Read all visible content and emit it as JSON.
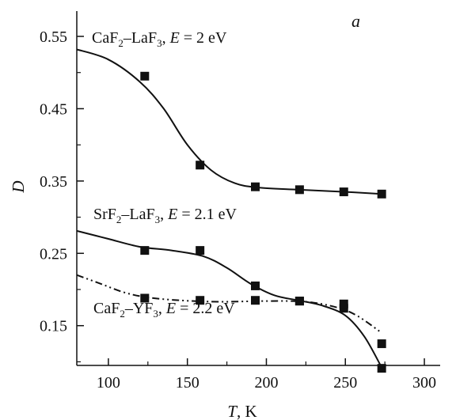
{
  "chart_data": {
    "type": "scatter",
    "panel_label": "a",
    "xlabel_var": "T",
    "xlabel_unit": ", K",
    "ylabel": "D",
    "xlim": [
      80,
      310
    ],
    "ylim": [
      0.095,
      0.585
    ],
    "x_ticks": [
      100,
      150,
      200,
      250,
      300
    ],
    "y_ticks": [
      0.15,
      0.25,
      0.35,
      0.45,
      0.55
    ],
    "x_tick_labels": [
      "100",
      "150",
      "200",
      "250",
      "300"
    ],
    "y_tick_labels": [
      "0.15",
      "0.25",
      "0.35",
      "0.45",
      "0.55"
    ],
    "grid": false,
    "series": [
      {
        "id": "caf2-laf3",
        "label": {
          "a": "CaF",
          "a_sub": "2",
          "b": "–LaF",
          "b_sub": "3",
          "sep": ", ",
          "e": "E",
          "rest": " = 2 eV"
        },
        "line_style": "solid",
        "points": [
          [
            123,
            0.495
          ],
          [
            158,
            0.372
          ],
          [
            193,
            0.342
          ],
          [
            221,
            0.338
          ],
          [
            249,
            0.335
          ],
          [
            273,
            0.332
          ]
        ],
        "curve": [
          [
            80,
            0.532
          ],
          [
            100,
            0.518
          ],
          [
            120,
            0.487
          ],
          [
            135,
            0.45
          ],
          [
            150,
            0.4
          ],
          [
            165,
            0.365
          ],
          [
            180,
            0.347
          ],
          [
            195,
            0.341
          ],
          [
            220,
            0.338
          ],
          [
            250,
            0.335
          ],
          [
            273,
            0.332
          ]
        ]
      },
      {
        "id": "srf2-laf3",
        "label": {
          "a": "SrF",
          "a_sub": "2",
          "b": "–LaF",
          "b_sub": "3",
          "sep": ", ",
          "e": "E",
          "rest": " = 2.1 eV"
        },
        "line_style": "solid",
        "points": [
          [
            123,
            0.254
          ],
          [
            158,
            0.254
          ],
          [
            193,
            0.205
          ],
          [
            221,
            0.184
          ],
          [
            249,
            0.174
          ],
          [
            273,
            0.091
          ]
        ],
        "curve": [
          [
            80,
            0.281
          ],
          [
            100,
            0.27
          ],
          [
            120,
            0.259
          ],
          [
            140,
            0.254
          ],
          [
            160,
            0.246
          ],
          [
            175,
            0.23
          ],
          [
            190,
            0.208
          ],
          [
            205,
            0.192
          ],
          [
            220,
            0.185
          ],
          [
            235,
            0.178
          ],
          [
            250,
            0.164
          ],
          [
            262,
            0.135
          ],
          [
            273,
            0.092
          ]
        ]
      },
      {
        "id": "caf2-yf3",
        "label": {
          "a": "CaF",
          "a_sub": "2",
          "b": "–YF",
          "b_sub": "3",
          "sep": ", ",
          "e": "E",
          "rest": " = 2.2 eV"
        },
        "line_style": "dash-dot",
        "points": [
          [
            123,
            0.188
          ],
          [
            158,
            0.185
          ],
          [
            193,
            0.185
          ],
          [
            221,
            0.184
          ],
          [
            249,
            0.18
          ],
          [
            273,
            0.125
          ]
        ],
        "curve": [
          [
            80,
            0.22
          ],
          [
            95,
            0.208
          ],
          [
            110,
            0.196
          ],
          [
            125,
            0.189
          ],
          [
            145,
            0.185
          ],
          [
            170,
            0.183
          ],
          [
            200,
            0.184
          ],
          [
            225,
            0.183
          ],
          [
            245,
            0.175
          ],
          [
            258,
            0.163
          ],
          [
            273,
            0.14
          ]
        ]
      }
    ]
  }
}
